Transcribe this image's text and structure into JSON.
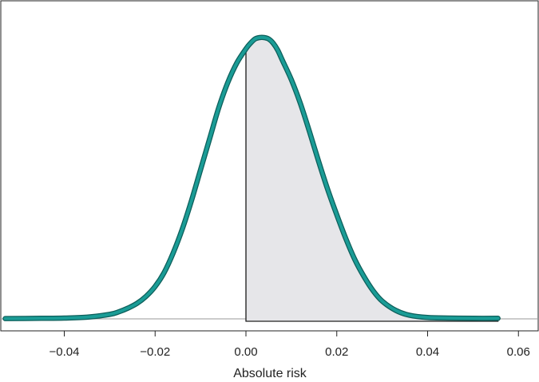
{
  "chart_data": {
    "type": "area",
    "title": "",
    "xlabel": "Absolute risk",
    "ylabel": "",
    "xlim": [
      -0.053,
      0.063
    ],
    "ylim": [
      0,
      1
    ],
    "x_ticks": [
      "−0.04",
      "−0.02",
      "0.00",
      "0.02",
      "0.04",
      "0.06"
    ],
    "x_tick_values": [
      -0.04,
      -0.02,
      0.0,
      0.02,
      0.04,
      0.06
    ],
    "grid": false,
    "legend": "none",
    "series": [
      {
        "style": "density-curve",
        "color": "#1a9c96",
        "x": [
          -0.053,
          -0.045,
          -0.04,
          -0.035,
          -0.03,
          -0.028,
          -0.026,
          -0.024,
          -0.022,
          -0.02,
          -0.018,
          -0.016,
          -0.014,
          -0.012,
          -0.01,
          -0.008,
          -0.006,
          -0.004,
          -0.002,
          0.0,
          0.001,
          0.002,
          0.003,
          0.004,
          0.005,
          0.006,
          0.007,
          0.008,
          0.01,
          0.012,
          0.014,
          0.016,
          0.018,
          0.02,
          0.022,
          0.024,
          0.026,
          0.028,
          0.03,
          0.033,
          0.036,
          0.04,
          0.045,
          0.05,
          0.0555
        ],
        "y": [
          0.001,
          0.002,
          0.003,
          0.006,
          0.016,
          0.025,
          0.038,
          0.055,
          0.08,
          0.115,
          0.165,
          0.235,
          0.32,
          0.42,
          0.53,
          0.64,
          0.75,
          0.84,
          0.91,
          0.96,
          0.98,
          0.995,
          1.0,
          1.0,
          0.995,
          0.98,
          0.955,
          0.92,
          0.85,
          0.765,
          0.665,
          0.56,
          0.46,
          0.37,
          0.285,
          0.21,
          0.15,
          0.1,
          0.063,
          0.03,
          0.013,
          0.005,
          0.003,
          0.002,
          0.002
        ]
      }
    ],
    "shaded_region": {
      "from_x": 0.0,
      "to_x": 0.0555,
      "fill": "#e6e6e9",
      "edge": "#222222"
    }
  }
}
